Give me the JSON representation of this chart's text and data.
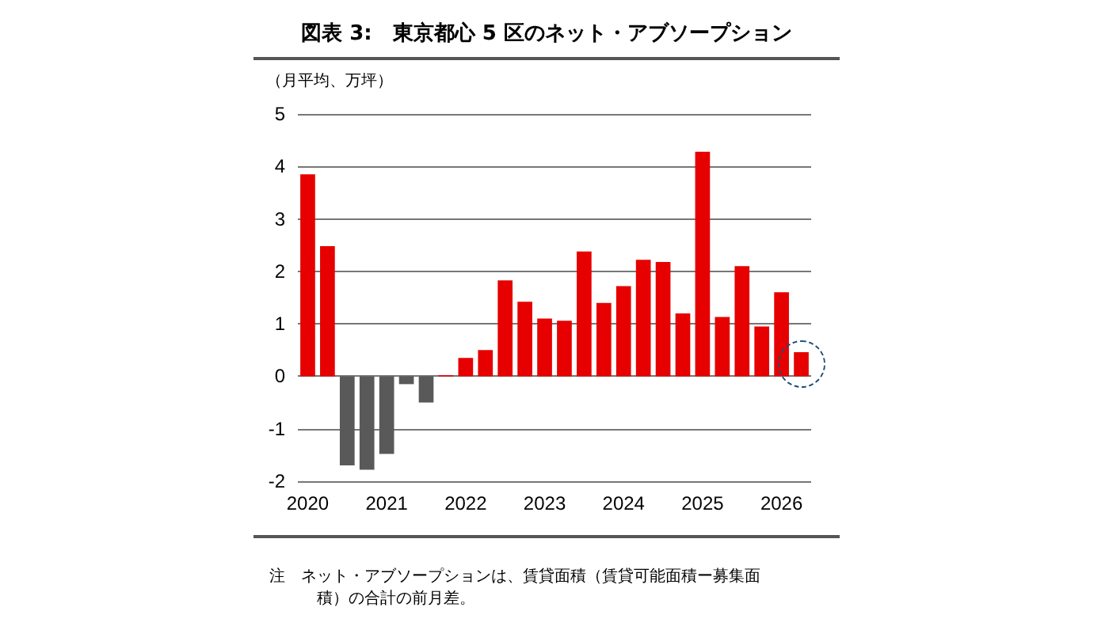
{
  "chart_data": {
    "type": "bar",
    "title": "図表 3:　東京都心 5 区のネット・アブソープション",
    "ylabel": "（月平均、万坪）",
    "categories": [
      "2020",
      null,
      null,
      null,
      "2021",
      null,
      null,
      null,
      "2022",
      null,
      null,
      null,
      "2023",
      null,
      null,
      null,
      "2024",
      null,
      null,
      null,
      "2025",
      null,
      null,
      null,
      "2026",
      null
    ],
    "values": [
      3.85,
      2.48,
      -1.7,
      -1.78,
      -1.48,
      -0.15,
      -0.5,
      0.02,
      0.35,
      0.5,
      1.83,
      1.42,
      1.1,
      1.06,
      2.38,
      1.4,
      1.72,
      2.22,
      2.18,
      1.2,
      4.28,
      1.13,
      2.1,
      0.95,
      1.6,
      0.46
    ],
    "colors": [
      "#e60000",
      "#e60000",
      "#595959",
      "#595959",
      "#595959",
      "#595959",
      "#595959",
      "#e60000",
      "#e60000",
      "#e60000",
      "#e60000",
      "#e60000",
      "#e60000",
      "#e60000",
      "#e60000",
      "#e60000",
      "#e60000",
      "#e60000",
      "#e60000",
      "#e60000",
      "#e60000",
      "#e60000",
      "#e60000",
      "#e60000",
      "#e60000",
      "#e60000"
    ],
    "ylim": [
      -2,
      5
    ],
    "yticks": [
      -2,
      -1,
      0,
      1,
      2,
      3,
      4,
      5
    ],
    "grid": "y",
    "annotations": [
      "注　ネット・アブソープションは、賃貸面積（賃貸可能面積ー募集面積）の合計の前月差。"
    ]
  }
}
